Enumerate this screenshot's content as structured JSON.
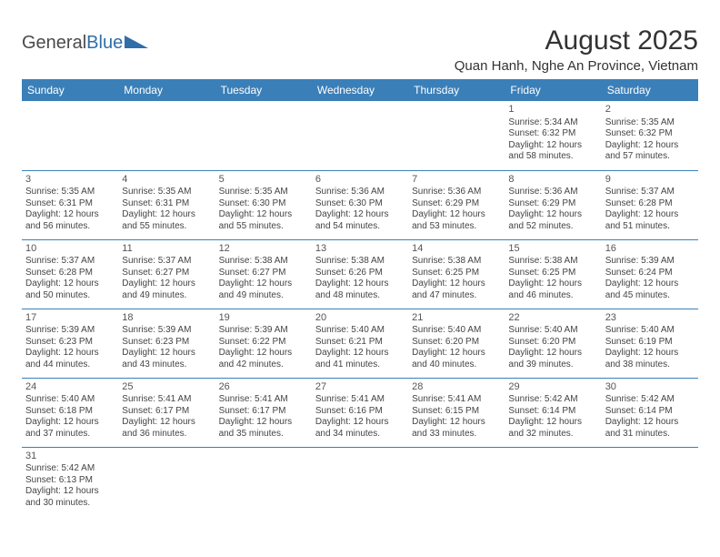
{
  "brand": {
    "word1": "General",
    "word2": "Blue"
  },
  "title": "August 2025",
  "location": "Quan Hanh, Nghe An Province, Vietnam",
  "colors": {
    "header_bg": "#3b7fb8",
    "header_text": "#ffffff",
    "border": "#3b7fb8",
    "body_text": "#444444",
    "title_text": "#333333",
    "logo_gray": "#4a4a4a",
    "logo_blue": "#2f6ea8",
    "page_bg": "#ffffff"
  },
  "day_headers": [
    "Sunday",
    "Monday",
    "Tuesday",
    "Wednesday",
    "Thursday",
    "Friday",
    "Saturday"
  ],
  "weeks": [
    [
      null,
      null,
      null,
      null,
      null,
      {
        "num": "1",
        "sunrise": "Sunrise: 5:34 AM",
        "sunset": "Sunset: 6:32 PM",
        "daylight": "Daylight: 12 hours and 58 minutes."
      },
      {
        "num": "2",
        "sunrise": "Sunrise: 5:35 AM",
        "sunset": "Sunset: 6:32 PM",
        "daylight": "Daylight: 12 hours and 57 minutes."
      }
    ],
    [
      {
        "num": "3",
        "sunrise": "Sunrise: 5:35 AM",
        "sunset": "Sunset: 6:31 PM",
        "daylight": "Daylight: 12 hours and 56 minutes."
      },
      {
        "num": "4",
        "sunrise": "Sunrise: 5:35 AM",
        "sunset": "Sunset: 6:31 PM",
        "daylight": "Daylight: 12 hours and 55 minutes."
      },
      {
        "num": "5",
        "sunrise": "Sunrise: 5:35 AM",
        "sunset": "Sunset: 6:30 PM",
        "daylight": "Daylight: 12 hours and 55 minutes."
      },
      {
        "num": "6",
        "sunrise": "Sunrise: 5:36 AM",
        "sunset": "Sunset: 6:30 PM",
        "daylight": "Daylight: 12 hours and 54 minutes."
      },
      {
        "num": "7",
        "sunrise": "Sunrise: 5:36 AM",
        "sunset": "Sunset: 6:29 PM",
        "daylight": "Daylight: 12 hours and 53 minutes."
      },
      {
        "num": "8",
        "sunrise": "Sunrise: 5:36 AM",
        "sunset": "Sunset: 6:29 PM",
        "daylight": "Daylight: 12 hours and 52 minutes."
      },
      {
        "num": "9",
        "sunrise": "Sunrise: 5:37 AM",
        "sunset": "Sunset: 6:28 PM",
        "daylight": "Daylight: 12 hours and 51 minutes."
      }
    ],
    [
      {
        "num": "10",
        "sunrise": "Sunrise: 5:37 AM",
        "sunset": "Sunset: 6:28 PM",
        "daylight": "Daylight: 12 hours and 50 minutes."
      },
      {
        "num": "11",
        "sunrise": "Sunrise: 5:37 AM",
        "sunset": "Sunset: 6:27 PM",
        "daylight": "Daylight: 12 hours and 49 minutes."
      },
      {
        "num": "12",
        "sunrise": "Sunrise: 5:38 AM",
        "sunset": "Sunset: 6:27 PM",
        "daylight": "Daylight: 12 hours and 49 minutes."
      },
      {
        "num": "13",
        "sunrise": "Sunrise: 5:38 AM",
        "sunset": "Sunset: 6:26 PM",
        "daylight": "Daylight: 12 hours and 48 minutes."
      },
      {
        "num": "14",
        "sunrise": "Sunrise: 5:38 AM",
        "sunset": "Sunset: 6:25 PM",
        "daylight": "Daylight: 12 hours and 47 minutes."
      },
      {
        "num": "15",
        "sunrise": "Sunrise: 5:38 AM",
        "sunset": "Sunset: 6:25 PM",
        "daylight": "Daylight: 12 hours and 46 minutes."
      },
      {
        "num": "16",
        "sunrise": "Sunrise: 5:39 AM",
        "sunset": "Sunset: 6:24 PM",
        "daylight": "Daylight: 12 hours and 45 minutes."
      }
    ],
    [
      {
        "num": "17",
        "sunrise": "Sunrise: 5:39 AM",
        "sunset": "Sunset: 6:23 PM",
        "daylight": "Daylight: 12 hours and 44 minutes."
      },
      {
        "num": "18",
        "sunrise": "Sunrise: 5:39 AM",
        "sunset": "Sunset: 6:23 PM",
        "daylight": "Daylight: 12 hours and 43 minutes."
      },
      {
        "num": "19",
        "sunrise": "Sunrise: 5:39 AM",
        "sunset": "Sunset: 6:22 PM",
        "daylight": "Daylight: 12 hours and 42 minutes."
      },
      {
        "num": "20",
        "sunrise": "Sunrise: 5:40 AM",
        "sunset": "Sunset: 6:21 PM",
        "daylight": "Daylight: 12 hours and 41 minutes."
      },
      {
        "num": "21",
        "sunrise": "Sunrise: 5:40 AM",
        "sunset": "Sunset: 6:20 PM",
        "daylight": "Daylight: 12 hours and 40 minutes."
      },
      {
        "num": "22",
        "sunrise": "Sunrise: 5:40 AM",
        "sunset": "Sunset: 6:20 PM",
        "daylight": "Daylight: 12 hours and 39 minutes."
      },
      {
        "num": "23",
        "sunrise": "Sunrise: 5:40 AM",
        "sunset": "Sunset: 6:19 PM",
        "daylight": "Daylight: 12 hours and 38 minutes."
      }
    ],
    [
      {
        "num": "24",
        "sunrise": "Sunrise: 5:40 AM",
        "sunset": "Sunset: 6:18 PM",
        "daylight": "Daylight: 12 hours and 37 minutes."
      },
      {
        "num": "25",
        "sunrise": "Sunrise: 5:41 AM",
        "sunset": "Sunset: 6:17 PM",
        "daylight": "Daylight: 12 hours and 36 minutes."
      },
      {
        "num": "26",
        "sunrise": "Sunrise: 5:41 AM",
        "sunset": "Sunset: 6:17 PM",
        "daylight": "Daylight: 12 hours and 35 minutes."
      },
      {
        "num": "27",
        "sunrise": "Sunrise: 5:41 AM",
        "sunset": "Sunset: 6:16 PM",
        "daylight": "Daylight: 12 hours and 34 minutes."
      },
      {
        "num": "28",
        "sunrise": "Sunrise: 5:41 AM",
        "sunset": "Sunset: 6:15 PM",
        "daylight": "Daylight: 12 hours and 33 minutes."
      },
      {
        "num": "29",
        "sunrise": "Sunrise: 5:42 AM",
        "sunset": "Sunset: 6:14 PM",
        "daylight": "Daylight: 12 hours and 32 minutes."
      },
      {
        "num": "30",
        "sunrise": "Sunrise: 5:42 AM",
        "sunset": "Sunset: 6:14 PM",
        "daylight": "Daylight: 12 hours and 31 minutes."
      }
    ],
    [
      {
        "num": "31",
        "sunrise": "Sunrise: 5:42 AM",
        "sunset": "Sunset: 6:13 PM",
        "daylight": "Daylight: 12 hours and 30 minutes."
      },
      null,
      null,
      null,
      null,
      null,
      null
    ]
  ]
}
